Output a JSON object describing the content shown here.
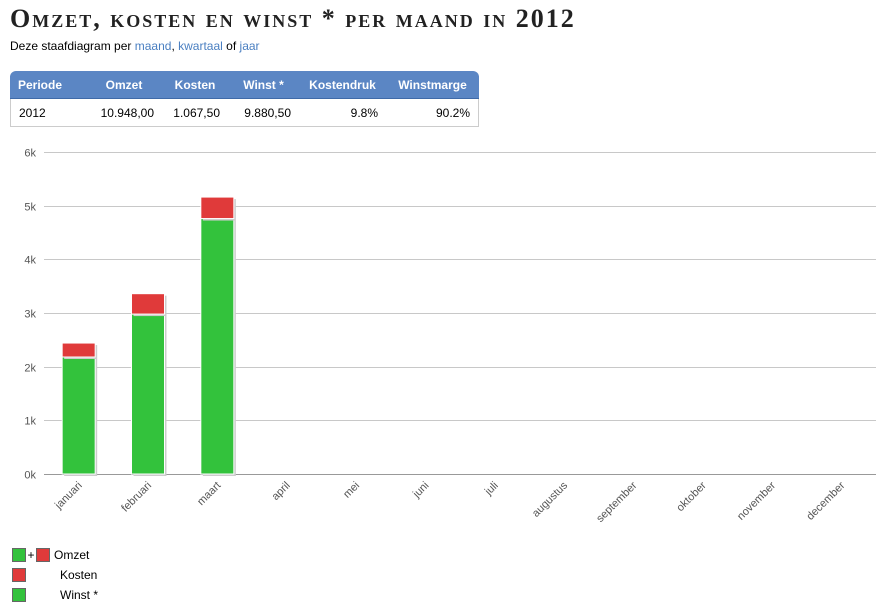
{
  "header": {
    "title": "Omzet, kosten en winst * per maand in 2012",
    "subtitle_prefix": "Deze staafdiagram per",
    "link_maand": "maand",
    "link_sep": ",",
    "link_kwartaal": "kwartaal",
    "link_of": "of",
    "link_jaar": "jaar"
  },
  "summary": {
    "headers": [
      "Periode",
      "Omzet",
      "Kosten",
      "Winst *",
      "Kostendruk",
      "Winstmarge"
    ],
    "row": [
      "2012",
      "10.948,00",
      "1.067,50",
      "9.880,50",
      "9.8%",
      "90.2%"
    ]
  },
  "colors": {
    "winst": "#33c23c",
    "kosten": "#e03a3a",
    "header": "#5b86c4",
    "link": "#4a7fc1"
  },
  "chart_data": {
    "type": "bar",
    "stacked": true,
    "categories": [
      "januari",
      "februari",
      "maart",
      "april",
      "mei",
      "juni",
      "juli",
      "augustus",
      "september",
      "oktober",
      "november",
      "december"
    ],
    "series": [
      {
        "name": "Winst *",
        "color": "#33c23c",
        "values": [
          2180,
          2980,
          4760,
          0,
          0,
          0,
          0,
          0,
          0,
          0,
          0,
          0
        ]
      },
      {
        "name": "Kosten",
        "color": "#e03a3a",
        "values": [
          260,
          380,
          400,
          0,
          0,
          0,
          0,
          0,
          0,
          0,
          0,
          0
        ]
      }
    ],
    "ylim": [
      0,
      6000
    ],
    "yticks": [
      0,
      1000,
      2000,
      3000,
      4000,
      5000,
      6000
    ],
    "ytick_labels": [
      "0k",
      "1k",
      "2k",
      "3k",
      "4k",
      "5k",
      "6k"
    ],
    "grid": true
  },
  "legend": {
    "items": [
      {
        "label": "Omzet"
      },
      {
        "label": "Kosten"
      },
      {
        "label": "Winst *"
      }
    ],
    "plus": "+"
  }
}
